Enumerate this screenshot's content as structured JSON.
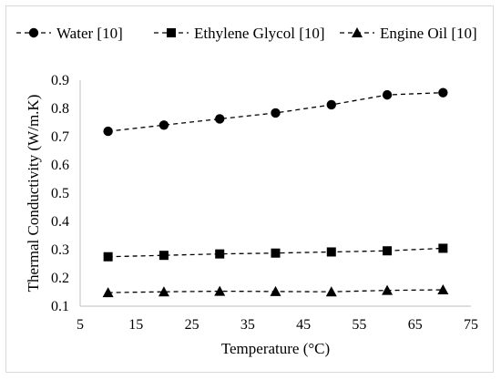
{
  "chart_data": {
    "type": "line",
    "title": "",
    "xlabel": "Temperature (°C)",
    "ylabel": "Thermal Conductivity (W/m.K)",
    "xlim": [
      5,
      75
    ],
    "ylim": [
      0.1,
      0.9
    ],
    "xticks": [
      5,
      15,
      25,
      35,
      45,
      55,
      65,
      75
    ],
    "yticks": [
      0.1,
      0.2,
      0.3,
      0.4,
      0.5,
      0.6,
      0.7,
      0.8,
      0.9
    ],
    "grid": false,
    "legend_position": "top",
    "line_style": "dashed",
    "color": "#000000",
    "x": [
      10,
      20,
      30,
      40,
      50,
      60,
      70
    ],
    "series": [
      {
        "name": "Water [10]",
        "marker": "circle",
        "values": [
          0.719,
          0.741,
          0.763,
          0.784,
          0.813,
          0.848,
          0.856
        ]
      },
      {
        "name": "Ethylene Glycol [10]",
        "marker": "square",
        "values": [
          0.275,
          0.28,
          0.285,
          0.288,
          0.292,
          0.296,
          0.305
        ]
      },
      {
        "name": "Engine Oil [10]",
        "marker": "triangle",
        "values": [
          0.148,
          0.151,
          0.153,
          0.152,
          0.151,
          0.156,
          0.158
        ]
      }
    ]
  }
}
